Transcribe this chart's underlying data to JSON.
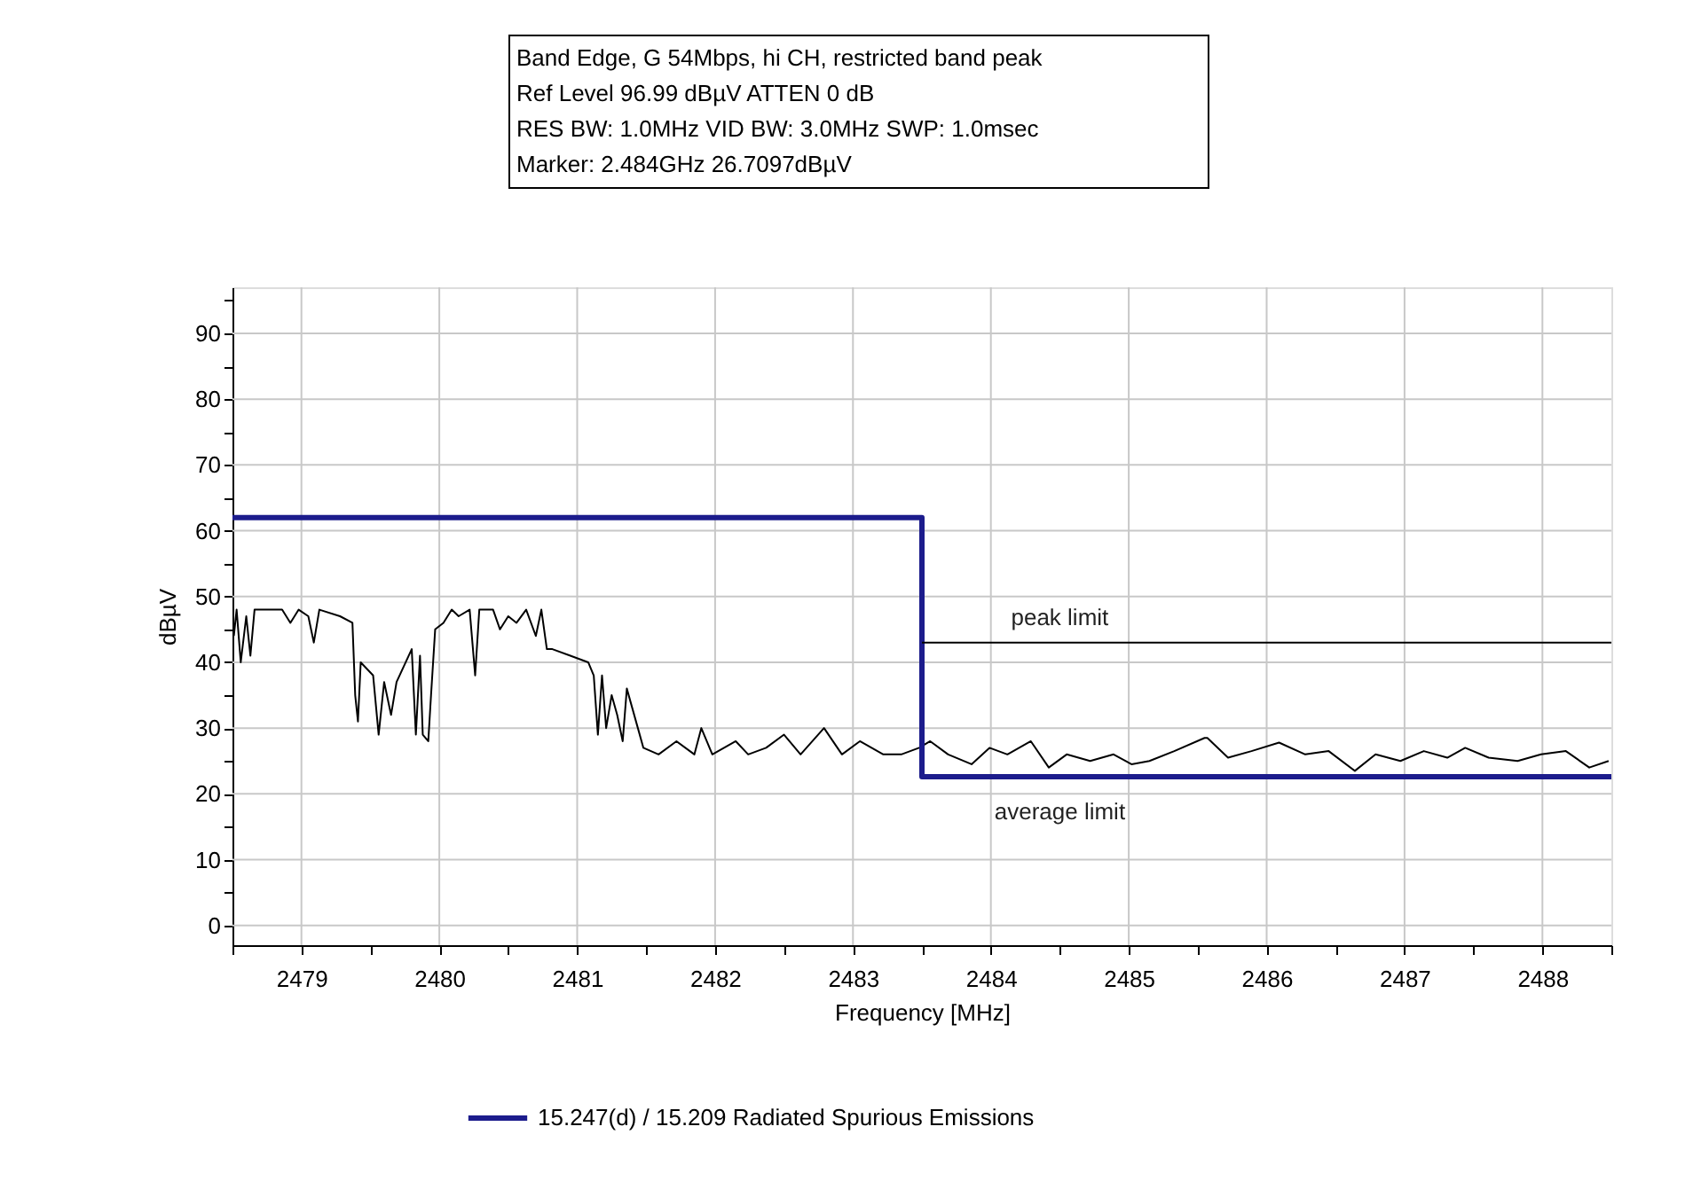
{
  "chart_data": {
    "type": "line",
    "annotations": [
      "Band Edge, G 54Mbps, hi CH, restricted band peak",
      "Ref Level 96.99 dBµV    ATTEN 0 dB",
      "RES BW: 1.0MHz  VID BW: 3.0MHz  SWP: 1.0msec",
      "Marker: 2.484GHz  26.7097dBµV",
      {
        "text": "peak limit",
        "x": 2484.5,
        "y": 43
      },
      {
        "text": "average limit",
        "x": 2484.5,
        "y": 22.6
      }
    ],
    "xlabel": "Frequency [MHz]",
    "ylabel": "dBµV",
    "xlim": [
      2478.5,
      2488.5
    ],
    "ylim": [
      -3,
      97
    ],
    "xticks": [
      {
        "value": 2478.5,
        "label": null
      },
      2479,
      {
        "value": 2479.5,
        "label": null
      },
      2480,
      {
        "value": 2480.5,
        "label": null
      },
      2481,
      {
        "value": 2481.5,
        "label": null
      },
      2482,
      {
        "value": 2482.5,
        "label": null
      },
      2483,
      {
        "value": 2483.5,
        "label": null
      },
      2484,
      {
        "value": 2484.5,
        "label": null
      },
      2485,
      {
        "value": 2485.5,
        "label": null
      },
      2486,
      {
        "value": 2486.5,
        "label": null
      },
      2487,
      {
        "value": 2487.5,
        "label": null
      },
      2488,
      {
        "value": 2488.5,
        "label": null
      }
    ],
    "yticks": [
      0,
      {
        "value": 5,
        "label": null
      },
      10,
      {
        "value": 15,
        "label": null
      },
      20,
      {
        "value": 25,
        "label": null
      },
      30,
      {
        "value": 35,
        "label": null
      },
      40,
      {
        "value": 45,
        "label": null
      },
      50,
      {
        "value": 55,
        "label": null
      },
      60,
      {
        "value": 65,
        "label": null
      },
      70,
      {
        "value": 75,
        "label": null
      },
      80,
      {
        "value": 85,
        "label": null
      },
      90,
      {
        "value": 95,
        "label": null
      }
    ],
    "grid": true,
    "legend": "bottom",
    "series": [
      {
        "color": "#000000",
        "x": [
          2478.51,
          2478.53,
          2478.56,
          2478.6,
          2478.63,
          2478.66,
          2478.86,
          2478.92,
          2478.98,
          2479.05,
          2479.09,
          2479.13,
          2479.28,
          2479.37,
          2479.39,
          2479.41,
          2479.43,
          2479.52,
          2479.56,
          2479.6,
          2479.65,
          2479.69,
          2479.8,
          2479.83,
          2479.86,
          2479.88,
          2479.92,
          2479.94,
          2479.97,
          2480.03,
          2480.09,
          2480.14,
          2480.22,
          2480.26,
          2480.29,
          2480.39,
          2480.44,
          2480.5,
          2480.56,
          2480.63,
          2480.7,
          2480.74,
          2480.78,
          2480.82,
          2480.95,
          2481.08,
          2481.12,
          2481.15,
          2481.18,
          2481.21,
          2481.25,
          2481.29,
          2481.33,
          2481.36,
          2481.4,
          2481.44,
          2481.48,
          2481.59,
          2481.72,
          2481.85,
          2481.9,
          2481.98,
          2482.15,
          2482.24,
          2482.37,
          2482.5,
          2482.62,
          2482.79,
          2482.92,
          2483.05,
          2483.22,
          2483.35,
          2483.48,
          2483.56,
          2483.69,
          2483.86,
          2483.99,
          2484.12,
          2484.29,
          2484.42,
          2484.55,
          2484.72,
          2484.89,
          2485.02,
          2485.15,
          2485.33,
          2485.55,
          2485.57,
          2485.72,
          2485.89,
          2486.09,
          2486.28,
          2486.45,
          2486.64,
          2486.79,
          2486.97,
          2487.14,
          2487.31,
          2487.44,
          2487.61,
          2487.82,
          2487.99,
          2488.17,
          2488.34,
          2488.48
        ],
        "values": [
          44,
          48,
          40,
          47,
          41,
          48,
          48,
          46,
          48,
          47,
          43,
          48,
          47,
          46,
          35,
          31,
          40,
          38,
          29,
          37,
          32,
          37,
          42,
          29,
          41,
          29,
          28,
          35,
          45,
          46,
          48,
          47,
          48,
          38,
          48,
          48,
          45,
          47,
          46,
          48,
          44,
          48,
          42,
          42,
          41,
          40,
          38,
          29,
          38,
          30,
          35,
          32,
          28,
          36,
          33,
          30,
          27,
          26,
          28,
          26,
          30,
          26,
          28,
          26,
          27,
          29,
          26,
          30,
          26,
          28,
          26,
          26,
          27,
          28,
          26,
          24.5,
          27,
          26,
          28,
          24,
          26,
          25,
          26,
          24.5,
          25,
          26.5,
          28.5,
          28.5,
          25.5,
          26.5,
          27.8,
          26,
          26.5,
          23.5,
          26,
          25,
          26.5,
          25.5,
          27,
          25.5,
          25,
          26,
          26.5,
          24,
          25
        ]
      },
      {
        "name": "15.247(d) / 15.209 Radiated Spurious Emissions",
        "color": "#1c1c8c",
        "x": [
          2478.5,
          2483.5,
          2483.5,
          2488.5
        ],
        "values": [
          62,
          62,
          22.6,
          22.6
        ]
      },
      {
        "color": "#000000",
        "x": [
          2483.5,
          2488.5
        ],
        "values": [
          43,
          43
        ]
      }
    ]
  }
}
